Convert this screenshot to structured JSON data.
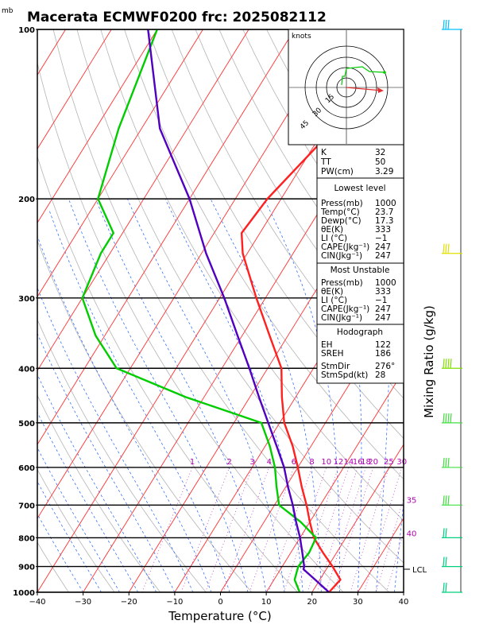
{
  "title": "Macerata ECMWF0200 frc: 2025082112",
  "pressure_unit": "mb",
  "chart_data": {
    "type": "line",
    "title": "Macerata ECMWF0200 frc: 2025082112",
    "xlabel": "Temperature (°C)",
    "ylabel": "Mixing Ratio (g/kg)",
    "xlim": [
      -40,
      40
    ],
    "ylim": [
      1000,
      100
    ],
    "x_ticks": [
      -40,
      -30,
      -20,
      -10,
      0,
      10,
      20,
      30,
      40
    ],
    "y_ticks": [
      1000,
      900,
      800,
      700,
      600,
      500,
      400,
      300,
      200,
      100
    ],
    "y_scale": "log",
    "series": [
      {
        "name": "temperature",
        "color": "#ff2020",
        "points": [
          [
            1000,
            23.7
          ],
          [
            950,
            24.5
          ],
          [
            900,
            21
          ],
          [
            850,
            17
          ],
          [
            800,
            13
          ],
          [
            750,
            10
          ],
          [
            700,
            7
          ],
          [
            650,
            3.5
          ],
          [
            600,
            0
          ],
          [
            550,
            -4
          ],
          [
            500,
            -9
          ],
          [
            450,
            -13
          ],
          [
            400,
            -17
          ],
          [
            350,
            -24
          ],
          [
            300,
            -32
          ],
          [
            250,
            -41
          ],
          [
            230,
            -44
          ],
          [
            200,
            -43
          ],
          [
            150,
            -38
          ],
          [
            100,
            -33
          ]
        ]
      },
      {
        "name": "dewpoint",
        "color": "#00cc00",
        "points": [
          [
            1000,
            17.3
          ],
          [
            950,
            14.5
          ],
          [
            900,
            13.5
          ],
          [
            850,
            14
          ],
          [
            800,
            13.5
          ],
          [
            750,
            8
          ],
          [
            700,
            1
          ],
          [
            650,
            -2
          ],
          [
            600,
            -5
          ],
          [
            550,
            -9
          ],
          [
            500,
            -14
          ],
          [
            450,
            -34
          ],
          [
            400,
            -53
          ],
          [
            350,
            -62
          ],
          [
            300,
            -70
          ],
          [
            250,
            -72
          ],
          [
            230,
            -72
          ],
          [
            200,
            -80
          ],
          [
            150,
            -85
          ],
          [
            100,
            -90
          ]
        ]
      },
      {
        "name": "parcel",
        "color": "#5000c0",
        "points": [
          [
            1000,
            23.7
          ],
          [
            950,
            19
          ],
          [
            910,
            15
          ],
          [
            900,
            14.8
          ],
          [
            850,
            12.5
          ],
          [
            800,
            10
          ],
          [
            750,
            7
          ],
          [
            700,
            4
          ],
          [
            650,
            0.5
          ],
          [
            600,
            -3
          ],
          [
            550,
            -7.5
          ],
          [
            500,
            -12.5
          ],
          [
            450,
            -18
          ],
          [
            400,
            -24
          ],
          [
            350,
            -31
          ],
          [
            300,
            -39
          ],
          [
            250,
            -49
          ],
          [
            200,
            -60
          ],
          [
            150,
            -76
          ],
          [
            100,
            -92
          ]
        ]
      }
    ],
    "mixing_ratio_labels": [
      "1",
      "2",
      "3",
      "4",
      "6",
      "8",
      "10",
      "12",
      "14",
      "16",
      "18",
      "20",
      "25",
      "30",
      "35",
      "40"
    ],
    "lcl_label": "LCL",
    "lcl_pressure": 910,
    "wind_profile_colors": [
      "#00c0ff",
      "#e0e000",
      "#80e000",
      "#40e040",
      "#00d080"
    ],
    "grid": true
  },
  "hodograph": {
    "unit_label": "knots",
    "ring_labels": [
      "15",
      "30",
      "45"
    ]
  },
  "indices": {
    "block1": [
      {
        "label": "K",
        "value": "32"
      },
      {
        "label": "TT",
        "value": "50"
      },
      {
        "label": "PW(cm)",
        "value": "3.29"
      }
    ],
    "lowest_level": {
      "heading": "Lowest level",
      "rows": [
        {
          "label": "Press(mb)",
          "value": "1000"
        },
        {
          "label": "Temp(°C)",
          "value": "23.7"
        },
        {
          "label": "Dewp(°C)",
          "value": "17.3"
        },
        {
          "label": "θE(K)",
          "value": "333"
        },
        {
          "label": "LI (°C)",
          "value": "−1"
        },
        {
          "label": "CAPE(Jkg⁻¹)",
          "value": "247"
        },
        {
          "label": "CIN(Jkg⁻¹)",
          "value": "247"
        }
      ]
    },
    "most_unstable": {
      "heading": "Most Unstable",
      "rows": [
        {
          "label": "Press(mb)",
          "value": "1000"
        },
        {
          "label": "θE(K)",
          "value": "333"
        },
        {
          "label": "LI (°C)",
          "value": "−1"
        },
        {
          "label": "CAPE(Jkg⁻¹)",
          "value": "247"
        },
        {
          "label": "CIN(Jkg⁻¹)",
          "value": "247"
        }
      ]
    },
    "hodograph_params": {
      "heading": "Hodograph",
      "rows": [
        {
          "label": "EH",
          "value": "122"
        },
        {
          "label": "SREH",
          "value": "186"
        },
        {
          "label": "StmDir",
          "value": "276°"
        },
        {
          "label": "StmSpd(kt)",
          "value": "28"
        }
      ]
    }
  }
}
